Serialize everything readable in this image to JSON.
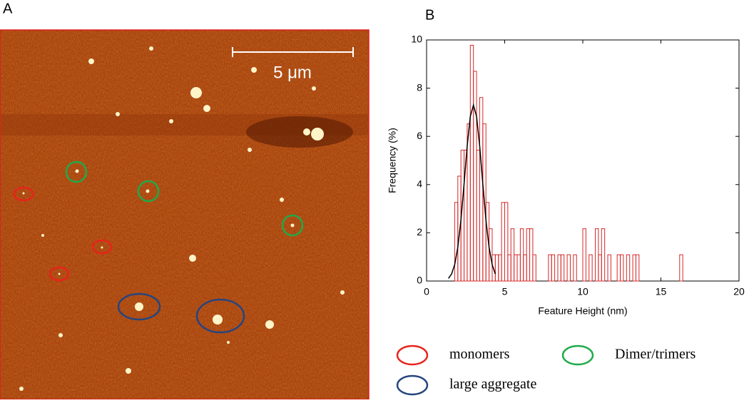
{
  "panel_a": {
    "label": "A",
    "scale_bar": "5 μm"
  },
  "legend": [
    {
      "label": "monomers",
      "color": "#e8231c"
    },
    {
      "label": "Dimer/trimers",
      "color": "#1faa48"
    },
    {
      "label": "large aggregate",
      "color": "#25457f"
    }
  ],
  "chart_data": {
    "type": "histogram",
    "panel_label": "B",
    "x_label": "Feature Height (nm)",
    "y_label": "Frequency (%)",
    "xlim": [
      0,
      20
    ],
    "xticks": [
      0,
      5,
      10,
      15,
      20
    ],
    "ylim": [
      0,
      10
    ],
    "yticks": [
      0,
      2,
      4,
      6,
      8,
      10
    ],
    "color": "#d42a2a",
    "bins": [
      1.8,
      2.0,
      2.2,
      2.4,
      2.6,
      2.8,
      3.0,
      3.2,
      3.4,
      3.6,
      3.8,
      4.0,
      4.2,
      4.4,
      4.6,
      4.8,
      5.0,
      5.2,
      5.4,
      5.6,
      5.8,
      6.0,
      6.2,
      6.4,
      6.6,
      6.8,
      7.0,
      7.2,
      7.4,
      7.6,
      7.8,
      8.0,
      8.2,
      8.4,
      8.6,
      8.8,
      9.0,
      9.2,
      9.4,
      9.6,
      9.8,
      10.0,
      10.2,
      10.4,
      10.6,
      10.8,
      11.0,
      11.2,
      11.4,
      11.6,
      11.8,
      12.0,
      12.2,
      12.4,
      12.6,
      12.8,
      13.0,
      13.2,
      13.4,
      13.6,
      13.8,
      14.0,
      14.2,
      14.4,
      14.6,
      14.8,
      15.0,
      15.2,
      15.4,
      15.6,
      15.8,
      16.0,
      16.2,
      16.4
    ],
    "values": [
      3.26,
      4.35,
      5.43,
      5.43,
      6.52,
      9.78,
      8.7,
      5.43,
      7.61,
      6.52,
      3.26,
      2.17,
      1.09,
      1.09,
      1.09,
      3.26,
      3.26,
      1.09,
      2.17,
      1.09,
      1.09,
      2.17,
      1.09,
      2.17,
      2.17,
      1.09,
      0,
      0,
      0,
      0,
      1.09,
      1.09,
      0,
      1.09,
      1.09,
      0,
      1.09,
      0,
      1.09,
      0,
      0,
      2.17,
      0,
      1.09,
      0,
      2.17,
      1.09,
      2.17,
      0,
      1.09,
      0,
      0,
      1.09,
      1.09,
      0,
      1.09,
      0,
      1.09,
      1.09,
      0,
      0,
      0,
      0,
      0,
      0,
      0,
      0,
      0,
      0,
      0,
      0,
      0,
      1.09
    ],
    "fit": {
      "color": "#000000",
      "x": [
        1.4,
        1.6,
        1.8,
        2.0,
        2.2,
        2.4,
        2.6,
        2.8,
        3.0,
        3.2,
        3.4,
        3.6,
        3.8,
        4.0,
        4.2,
        4.4
      ],
      "y": [
        0.11,
        0.29,
        0.68,
        1.4,
        2.53,
        4.03,
        5.6,
        6.83,
        7.3,
        6.83,
        5.6,
        4.03,
        2.53,
        1.4,
        0.68,
        0.29
      ]
    }
  }
}
